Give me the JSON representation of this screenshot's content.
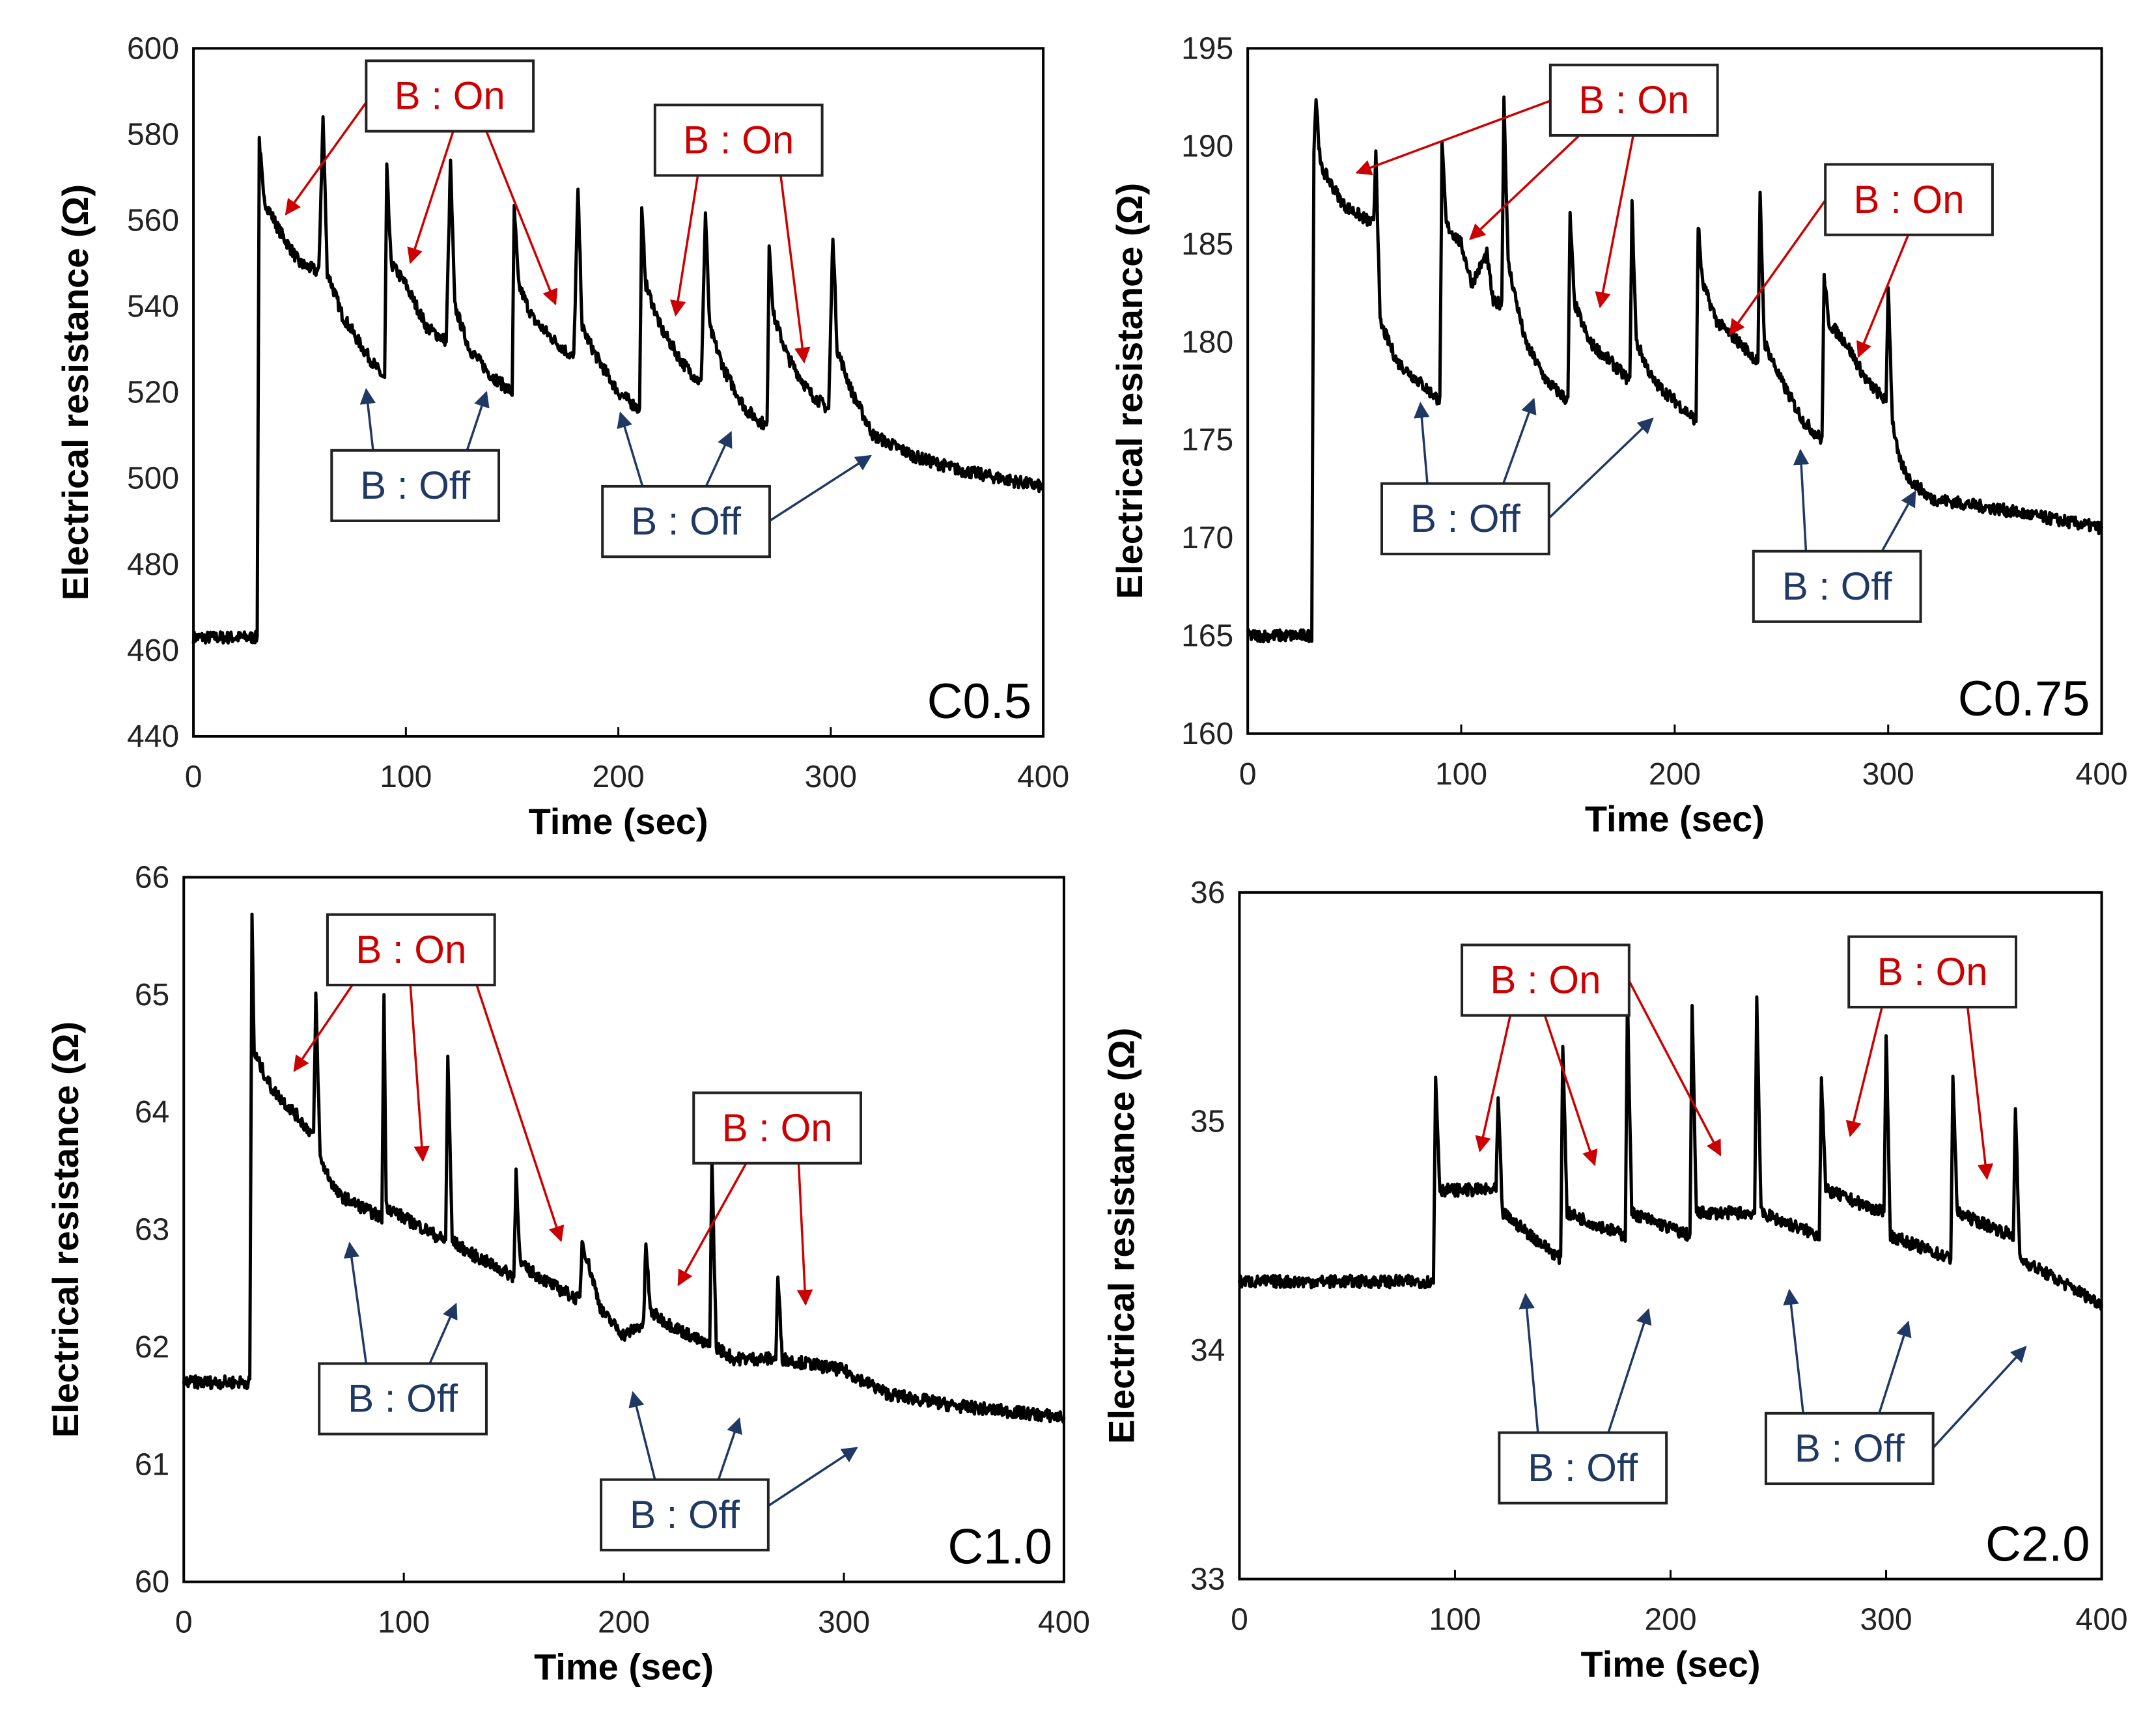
{
  "colors": {
    "on": "#cc0000",
    "off": "#1f3864",
    "trace": "#000000"
  },
  "chart_data": [
    {
      "type": "line",
      "tag": "C0.5",
      "xlabel": "Time (sec)",
      "ylabel": "Electrical  resistance  (Ω)",
      "xlim": [
        0,
        400
      ],
      "ylim": [
        440,
        600
      ],
      "xticks": [
        "0",
        "100",
        "200",
        "300",
        "400"
      ],
      "yticks": [
        "440",
        "460",
        "480",
        "500",
        "520",
        "540",
        "560",
        "580",
        "600"
      ],
      "annotations": [
        {
          "label": "B : On",
          "kind": "on"
        },
        {
          "label": "B : On",
          "kind": "on"
        },
        {
          "label": "B : Off",
          "kind": "off"
        },
        {
          "label": "B : Off",
          "kind": "off"
        }
      ],
      "points": [
        [
          0,
          463
        ],
        [
          30,
          463
        ],
        [
          31,
          579
        ],
        [
          33,
          565
        ],
        [
          40,
          558
        ],
        [
          50,
          550
        ],
        [
          59,
          548
        ],
        [
          61,
          584
        ],
        [
          63,
          548
        ],
        [
          70,
          538
        ],
        [
          80,
          530
        ],
        [
          90,
          523
        ],
        [
          91,
          572
        ],
        [
          93,
          550
        ],
        [
          100,
          545
        ],
        [
          110,
          535
        ],
        [
          119,
          532
        ],
        [
          121,
          574
        ],
        [
          123,
          540
        ],
        [
          130,
          530
        ],
        [
          140,
          524
        ],
        [
          150,
          520
        ],
        [
          151,
          563
        ],
        [
          153,
          545
        ],
        [
          160,
          537
        ],
        [
          170,
          532
        ],
        [
          179,
          528
        ],
        [
          181,
          567
        ],
        [
          183,
          535
        ],
        [
          190,
          528
        ],
        [
          200,
          520
        ],
        [
          210,
          516
        ],
        [
          211,
          562
        ],
        [
          213,
          545
        ],
        [
          220,
          535
        ],
        [
          230,
          527
        ],
        [
          239,
          522
        ],
        [
          241,
          562
        ],
        [
          243,
          535
        ],
        [
          250,
          525
        ],
        [
          260,
          516
        ],
        [
          270,
          512
        ],
        [
          271,
          555
        ],
        [
          273,
          538
        ],
        [
          280,
          528
        ],
        [
          290,
          520
        ],
        [
          299,
          516
        ],
        [
          301,
          557
        ],
        [
          303,
          530
        ],
        [
          310,
          520
        ],
        [
          320,
          510
        ],
        [
          340,
          505
        ],
        [
          360,
          502
        ],
        [
          400,
          498
        ]
      ]
    },
    {
      "type": "line",
      "tag": "C0.75",
      "xlabel": "Time (sec)",
      "ylabel": "Electrical  resistance  (Ω)",
      "xlim": [
        0,
        400
      ],
      "ylim": [
        160,
        195
      ],
      "xticks": [
        "0",
        "100",
        "200",
        "300",
        "400"
      ],
      "yticks": [
        "160",
        "165",
        "170",
        "175",
        "180",
        "185",
        "190",
        "195"
      ],
      "annotations": [
        {
          "label": "B : On",
          "kind": "on"
        },
        {
          "label": "B : On",
          "kind": "on"
        },
        {
          "label": "B : Off",
          "kind": "off"
        },
        {
          "label": "B : Off",
          "kind": "off"
        }
      ],
      "points": [
        [
          0,
          165
        ],
        [
          30,
          165
        ],
        [
          31,
          190
        ],
        [
          32,
          192.5
        ],
        [
          34,
          189
        ],
        [
          45,
          187
        ],
        [
          59,
          186
        ],
        [
          60,
          190
        ],
        [
          62,
          181
        ],
        [
          70,
          179
        ],
        [
          80,
          178
        ],
        [
          90,
          177
        ],
        [
          91,
          190
        ],
        [
          93,
          186
        ],
        [
          100,
          185
        ],
        [
          105,
          183
        ],
        [
          112,
          184.5
        ],
        [
          115,
          182
        ],
        [
          119,
          182
        ],
        [
          120,
          192.5
        ],
        [
          122,
          184
        ],
        [
          130,
          180
        ],
        [
          140,
          178
        ],
        [
          150,
          177
        ],
        [
          151,
          186.5
        ],
        [
          153,
          182
        ],
        [
          160,
          180
        ],
        [
          170,
          179
        ],
        [
          179,
          178
        ],
        [
          180,
          187
        ],
        [
          182,
          180
        ],
        [
          190,
          178
        ],
        [
          200,
          177
        ],
        [
          210,
          176
        ],
        [
          211,
          186
        ],
        [
          213,
          183
        ],
        [
          220,
          181
        ],
        [
          230,
          180
        ],
        [
          239,
          179
        ],
        [
          240,
          187.5
        ],
        [
          242,
          180
        ],
        [
          250,
          178
        ],
        [
          260,
          176
        ],
        [
          269,
          175
        ],
        [
          270,
          183.5
        ],
        [
          272,
          181
        ],
        [
          280,
          180
        ],
        [
          290,
          178
        ],
        [
          299,
          177
        ],
        [
          300,
          183
        ],
        [
          302,
          176
        ],
        [
          305,
          174
        ],
        [
          310,
          173
        ],
        [
          320,
          172
        ],
        [
          350,
          171.5
        ],
        [
          400,
          170.5
        ]
      ]
    },
    {
      "type": "line",
      "tag": "C1.0",
      "xlabel": "Time (sec)",
      "ylabel": "Electrical  resistance  (Ω)",
      "xlim": [
        0,
        400
      ],
      "ylim": [
        60,
        66
      ],
      "xticks": [
        "0",
        "100",
        "200",
        "300",
        "400"
      ],
      "yticks": [
        "60",
        "61",
        "62",
        "63",
        "64",
        "65",
        "66"
      ],
      "annotations": [
        {
          "label": "B : On",
          "kind": "on"
        },
        {
          "label": "B : On",
          "kind": "on"
        },
        {
          "label": "B : Off",
          "kind": "off"
        },
        {
          "label": "B : Off",
          "kind": "off"
        }
      ],
      "points": [
        [
          0,
          61.7
        ],
        [
          30,
          61.7
        ],
        [
          31,
          65.7
        ],
        [
          32,
          64.5
        ],
        [
          40,
          64.2
        ],
        [
          50,
          64.0
        ],
        [
          59,
          63.8
        ],
        [
          60,
          65.0
        ],
        [
          62,
          63.6
        ],
        [
          70,
          63.3
        ],
        [
          80,
          63.2
        ],
        [
          90,
          63.1
        ],
        [
          91,
          65.0
        ],
        [
          92,
          63.2
        ],
        [
          100,
          63.1
        ],
        [
          110,
          63.0
        ],
        [
          119,
          62.9
        ],
        [
          120,
          64.5
        ],
        [
          122,
          62.9
        ],
        [
          130,
          62.8
        ],
        [
          140,
          62.7
        ],
        [
          150,
          62.6
        ],
        [
          151,
          63.5
        ],
        [
          153,
          62.7
        ],
        [
          170,
          62.5
        ],
        [
          180,
          62.4
        ],
        [
          181,
          62.9
        ],
        [
          190,
          62.3
        ],
        [
          200,
          62.1
        ],
        [
          209,
          62.2
        ],
        [
          210,
          62.9
        ],
        [
          212,
          62.3
        ],
        [
          220,
          62.2
        ],
        [
          230,
          62.1
        ],
        [
          239,
          62.0
        ],
        [
          240,
          63.6
        ],
        [
          242,
          62.0
        ],
        [
          250,
          61.9
        ],
        [
          269,
          61.9
        ],
        [
          270,
          62.6
        ],
        [
          272,
          61.9
        ],
        [
          300,
          61.8
        ],
        [
          320,
          61.6
        ],
        [
          350,
          61.5
        ],
        [
          400,
          61.4
        ]
      ]
    },
    {
      "type": "line",
      "tag": "C2.0",
      "xlabel": "Time (sec)",
      "ylabel": "Electrical  resistance  (Ω)",
      "xlim": [
        0,
        400
      ],
      "ylim": [
        33,
        36
      ],
      "xticks": [
        "0",
        "100",
        "200",
        "300",
        "400"
      ],
      "yticks": [
        "33",
        "34",
        "35",
        "36"
      ],
      "annotations": [
        {
          "label": "B : On",
          "kind": "on"
        },
        {
          "label": "B : On",
          "kind": "on"
        },
        {
          "label": "B : Off",
          "kind": "off"
        },
        {
          "label": "B : Off",
          "kind": "off"
        }
      ],
      "points": [
        [
          0,
          34.3
        ],
        [
          90,
          34.3
        ],
        [
          91,
          35.2
        ],
        [
          93,
          34.7
        ],
        [
          119,
          34.7
        ],
        [
          120,
          35.1
        ],
        [
          122,
          34.6
        ],
        [
          149,
          34.4
        ],
        [
          150,
          35.35
        ],
        [
          152,
          34.6
        ],
        [
          179,
          34.5
        ],
        [
          180,
          35.55
        ],
        [
          182,
          34.6
        ],
        [
          209,
          34.5
        ],
        [
          210,
          35.5
        ],
        [
          212,
          34.6
        ],
        [
          239,
          34.6
        ],
        [
          240,
          35.55
        ],
        [
          242,
          34.6
        ],
        [
          269,
          34.5
        ],
        [
          270,
          35.2
        ],
        [
          272,
          34.7
        ],
        [
          299,
          34.6
        ],
        [
          300,
          35.4
        ],
        [
          302,
          34.5
        ],
        [
          330,
          34.4
        ],
        [
          331,
          35.2
        ],
        [
          333,
          34.6
        ],
        [
          359,
          34.5
        ],
        [
          360,
          35.05
        ],
        [
          362,
          34.4
        ],
        [
          400,
          34.2
        ]
      ]
    }
  ]
}
